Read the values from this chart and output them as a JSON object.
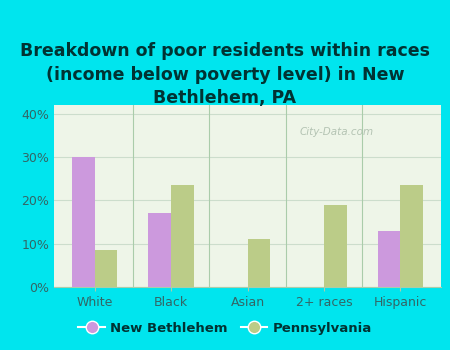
{
  "title": "Breakdown of poor residents within races\n(income below poverty level) in New\nBethlehem, PA",
  "categories": [
    "White",
    "Black",
    "Asian",
    "2+ races",
    "Hispanic"
  ],
  "new_bethlehem": [
    30,
    17,
    0,
    0,
    13
  ],
  "pennsylvania": [
    8.5,
    23.5,
    11,
    19,
    23.5
  ],
  "nb_color": "#cc99dd",
  "pa_color": "#bbcc88",
  "bg_outer": "#00e5ee",
  "bg_plot_top": "#f5faf0",
  "bg_plot_bottom": "#e8f4e8",
  "ylim": [
    0,
    42
  ],
  "yticks": [
    0,
    10,
    20,
    30,
    40
  ],
  "ytick_labels": [
    "0%",
    "10%",
    "20%",
    "30%",
    "40%"
  ],
  "bar_width": 0.3,
  "legend_nb": "New Bethlehem",
  "legend_pa": "Pennsylvania",
  "watermark": "City-Data.com",
  "title_fontsize": 12.5,
  "tick_fontsize": 9,
  "legend_fontsize": 9.5
}
